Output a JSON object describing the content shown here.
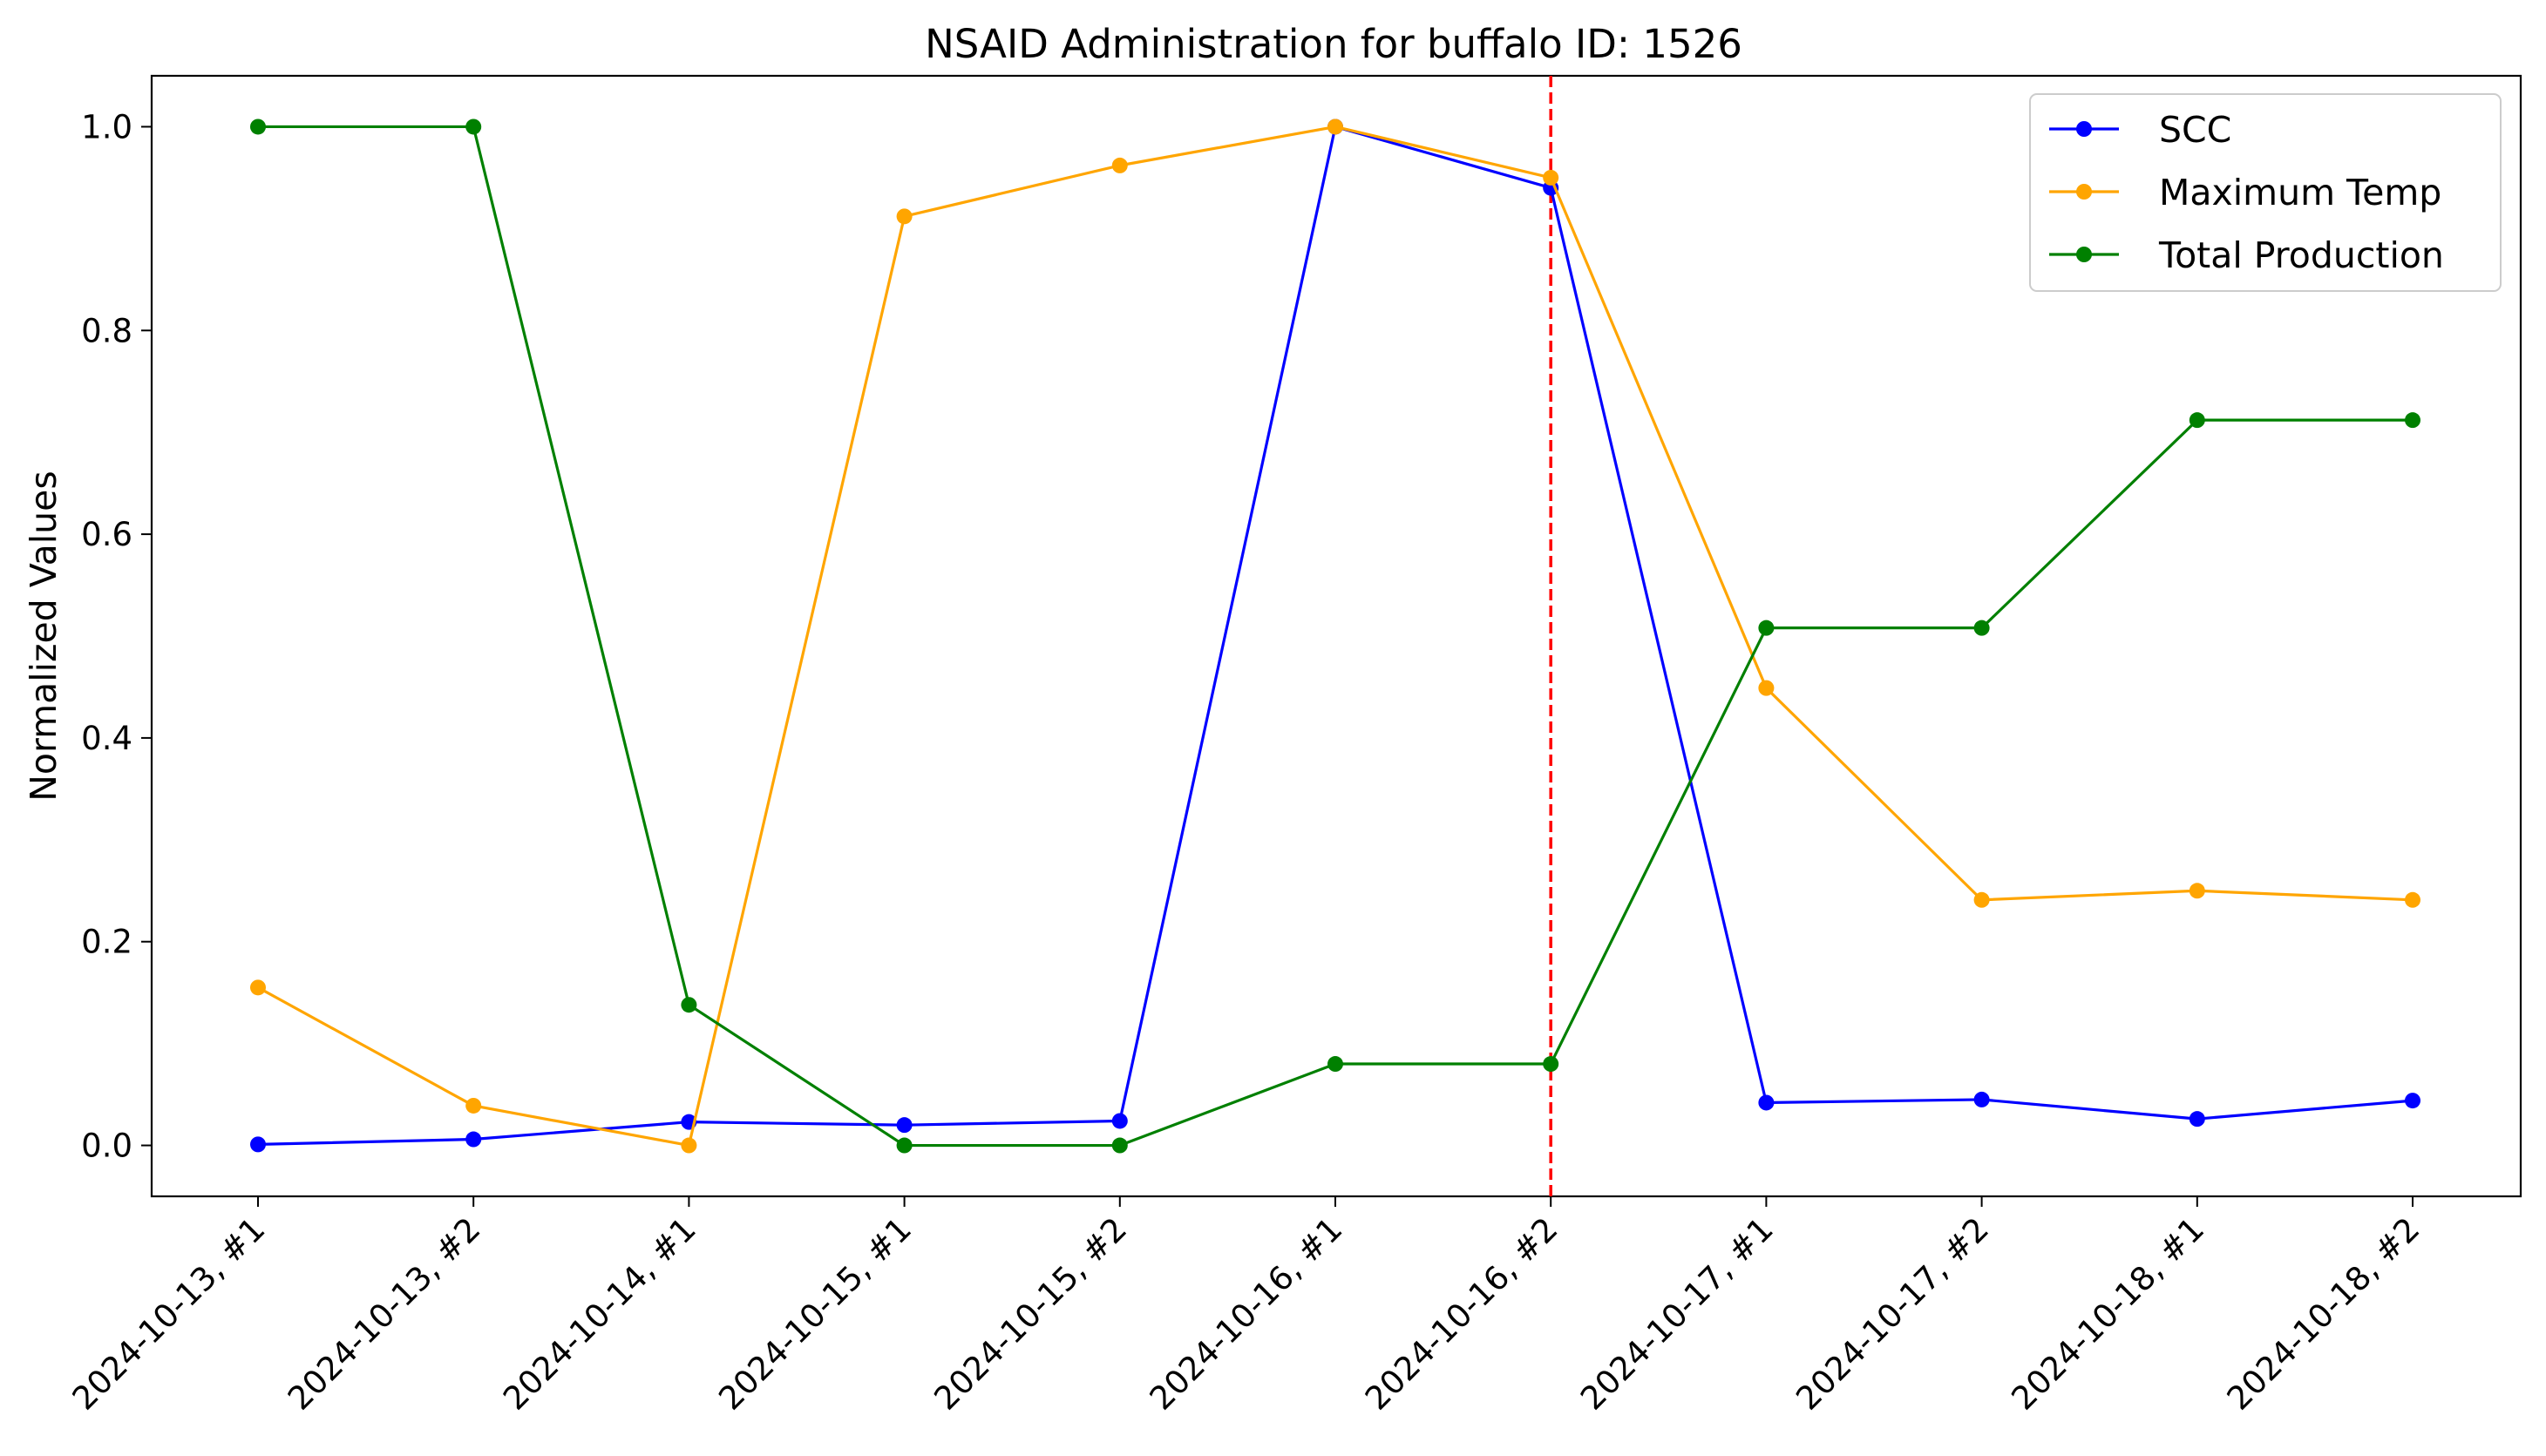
{
  "chart_data": {
    "type": "line",
    "title": "NSAID Administration for buffalo ID: 1526",
    "xlabel": "",
    "ylabel": "Normalized Values",
    "categories": [
      "2024-10-13, #1",
      "2024-10-13, #2",
      "2024-10-14, #1",
      "2024-10-15, #1",
      "2024-10-15, #2",
      "2024-10-16, #1",
      "2024-10-16, #2",
      "2024-10-17, #1",
      "2024-10-17, #2",
      "2024-10-18, #1",
      "2024-10-18, #2"
    ],
    "yticks": [
      "0.0",
      "0.2",
      "0.4",
      "0.6",
      "0.8",
      "1.0"
    ],
    "ylim": [
      -0.05,
      1.05
    ],
    "grid": false,
    "legend_position": "top-right",
    "marker_category": "2024-10-16, #2",
    "marker_color": "#ff0000",
    "series": [
      {
        "name": "SCC",
        "color": "#0000ff",
        "values": [
          0.001,
          0.006,
          0.023,
          0.02,
          0.024,
          1.0,
          0.94,
          0.042,
          0.045,
          0.026,
          0.044
        ]
      },
      {
        "name": "Maximum Temp",
        "color": "#ffa500",
        "values": [
          0.155,
          0.039,
          0.0,
          0.912,
          0.962,
          1.0,
          0.95,
          0.449,
          0.241,
          0.25,
          0.241
        ]
      },
      {
        "name": "Total Production",
        "color": "#008000",
        "values": [
          1.0,
          1.0,
          0.138,
          0.0,
          0.0,
          0.08,
          0.08,
          0.508,
          0.508,
          0.712,
          0.712
        ]
      }
    ]
  }
}
